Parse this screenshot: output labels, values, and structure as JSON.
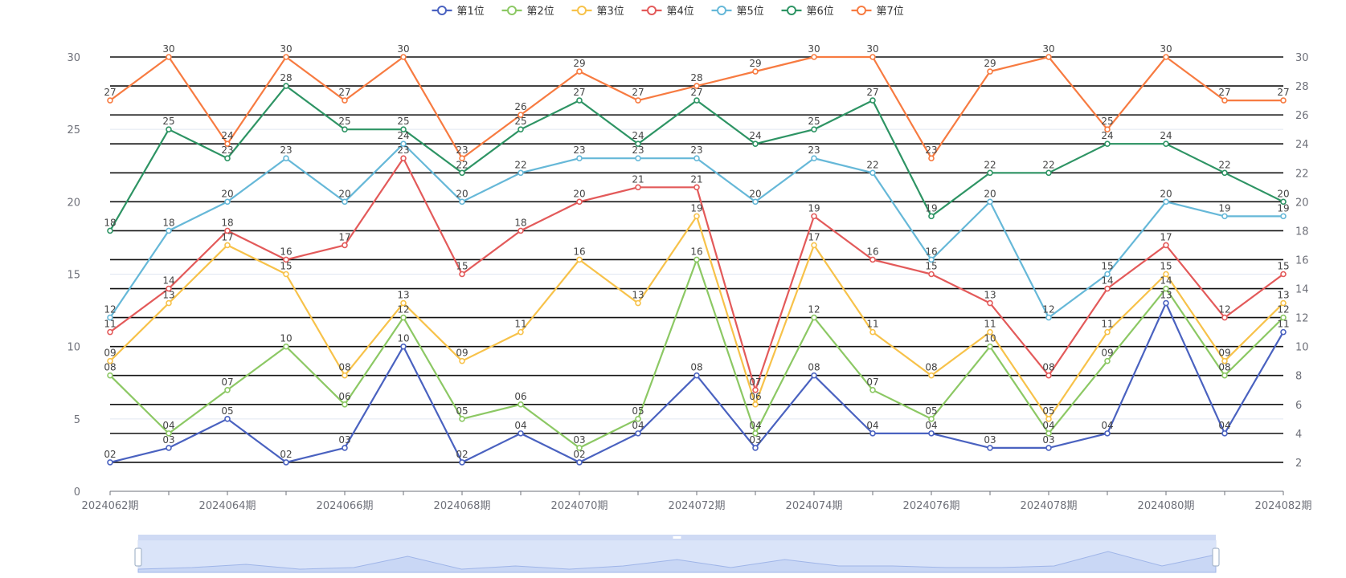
{
  "chart_data": {
    "type": "line",
    "x": [
      "2024062期",
      "2024063期",
      "2024064期",
      "2024065期",
      "2024066期",
      "2024067期",
      "2024068期",
      "2024069期",
      "2024070期",
      "2024071期",
      "2024072期",
      "2024073期",
      "2024074期",
      "2024075期",
      "2024076期",
      "2024077期",
      "2024078期",
      "2024079期",
      "2024080期",
      "2024081期",
      "2024082期"
    ],
    "series": [
      {
        "name": "第1位",
        "color": "#4a62c0",
        "values": [
          2,
          3,
          5,
          2,
          3,
          10,
          2,
          4,
          2,
          4,
          8,
          3,
          8,
          4,
          4,
          3,
          3,
          4,
          13,
          4,
          11
        ]
      },
      {
        "name": "第2位",
        "color": "#8cc864",
        "values": [
          8,
          4,
          7,
          10,
          6,
          12,
          5,
          6,
          3,
          5,
          16,
          4,
          12,
          7,
          5,
          10,
          4,
          9,
          14,
          8,
          12
        ]
      },
      {
        "name": "第3位",
        "color": "#f7c24a",
        "values": [
          9,
          13,
          17,
          15,
          8,
          13,
          9,
          11,
          16,
          13,
          19,
          6,
          17,
          11,
          8,
          11,
          5,
          11,
          15,
          9,
          13
        ]
      },
      {
        "name": "第4位",
        "color": "#e35a5a",
        "values": [
          11,
          14,
          18,
          16,
          17,
          23,
          15,
          18,
          20,
          21,
          21,
          7,
          19,
          16,
          15,
          13,
          8,
          14,
          17,
          12,
          15
        ]
      },
      {
        "name": "第5位",
        "color": "#66b8d8",
        "values": [
          12,
          18,
          20,
          23,
          20,
          24,
          20,
          22,
          23,
          23,
          23,
          20,
          23,
          22,
          16,
          20,
          12,
          15,
          20,
          19,
          19
        ]
      },
      {
        "name": "第6位",
        "color": "#2e9464",
        "values": [
          18,
          25,
          23,
          28,
          25,
          25,
          22,
          25,
          27,
          24,
          27,
          24,
          25,
          27,
          19,
          22,
          22,
          24,
          24,
          22,
          20
        ]
      },
      {
        "name": "第7位",
        "color": "#f77b41",
        "values": [
          27,
          30,
          24,
          30,
          27,
          30,
          23,
          26,
          29,
          27,
          28,
          29,
          30,
          30,
          23,
          29,
          30,
          25,
          30,
          27,
          27
        ]
      }
    ],
    "labels": {
      "第1位": [
        "02",
        "03",
        "05",
        "02",
        "03",
        "10",
        "02",
        "04",
        "02",
        "04",
        "08",
        "03",
        "08",
        "04",
        "04",
        "03",
        "03",
        "04",
        "13",
        "04",
        "11"
      ],
      "第2位": [
        "08",
        "04",
        "07",
        "10",
        "06",
        "12",
        "05",
        "06",
        "03",
        "05",
        "16",
        "04",
        "12",
        "07",
        "05",
        "10",
        "04",
        "09",
        "14",
        "08",
        "12"
      ],
      "第3位": [
        "09",
        "13",
        "17",
        "15",
        "08",
        "13",
        "09",
        "11",
        "16",
        "13",
        "19",
        "06",
        "17",
        "11",
        "08",
        "11",
        "05",
        "11",
        "15",
        "09",
        "13"
      ],
      "第4位": [
        "11",
        "14",
        "18",
        "16",
        "17",
        "23",
        "15",
        "18",
        "20",
        "21",
        "21",
        "07",
        "19",
        "16",
        "15",
        "13",
        "08",
        "14",
        "17",
        "12",
        "15"
      ],
      "第5位": [
        "12",
        "18",
        "20",
        "23",
        "20",
        "24",
        "20",
        "22",
        "23",
        "23",
        "23",
        "20",
        "23",
        "22",
        "16",
        "20",
        "12",
        "15",
        "20",
        "19",
        "19"
      ],
      "第6位": [
        "18",
        "25",
        "23",
        "28",
        "25",
        "25",
        "22",
        "25",
        "27",
        "24",
        "27",
        "24",
        "25",
        "27",
        "19",
        "22",
        "22",
        "24",
        "24",
        "22",
        "20"
      ],
      "第7位": [
        "27",
        "30",
        "24",
        "30",
        "27",
        "30",
        "23",
        "26",
        "29",
        "27",
        "28",
        "29",
        "30",
        "30",
        "23",
        "29",
        "30",
        "25",
        "30",
        "27",
        "27"
      ]
    },
    "x_tick_labels": [
      "2024062期",
      "2024064期",
      "2024066期",
      "2024068期",
      "2024070期",
      "2024072期",
      "2024074期",
      "2024076期",
      "2024078期",
      "2024080期",
      "2024082期"
    ],
    "y_left_ticks": [
      "0",
      "5",
      "10",
      "15",
      "20",
      "25",
      "30"
    ],
    "y_right_ticks": [
      "2",
      "4",
      "6",
      "8",
      "10",
      "12",
      "14",
      "16",
      "18",
      "20",
      "22",
      "24",
      "26",
      "28",
      "30"
    ],
    "ylim": [
      0,
      30
    ],
    "grid": true,
    "legend_position": "top-center",
    "title": "",
    "xlabel": "",
    "ylabel": "",
    "data_zoom": {
      "range_start": 0,
      "range_end": 1
    }
  }
}
